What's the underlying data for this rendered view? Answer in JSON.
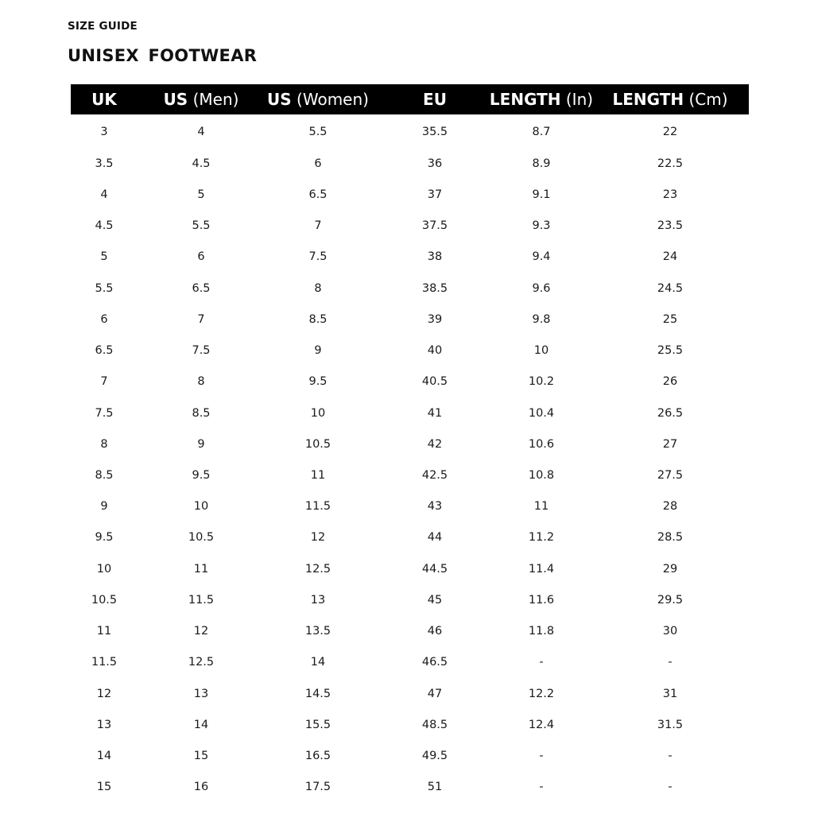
{
  "kicker": "SIZE GUIDE",
  "title": "UNISEX  FOOTWEAR",
  "colors": {
    "header_bg": "#000000",
    "header_text": "#ffffff",
    "text": "#111111"
  },
  "columns": [
    {
      "bold": "UK",
      "light": ""
    },
    {
      "bold": "US",
      "light": " (Men)"
    },
    {
      "bold": "US",
      "light": " (Women)"
    },
    {
      "bold": "EU",
      "light": ""
    },
    {
      "bold": "LENGTH",
      "light": " (In)"
    },
    {
      "bold": "LENGTH",
      "light": " (Cm)"
    }
  ],
  "rows": [
    [
      "3",
      "4",
      "5.5",
      "35.5",
      "8.7",
      "22"
    ],
    [
      "3.5",
      "4.5",
      "6",
      "36",
      "8.9",
      "22.5"
    ],
    [
      "4",
      "5",
      "6.5",
      "37",
      "9.1",
      "23"
    ],
    [
      "4.5",
      "5.5",
      "7",
      "37.5",
      "9.3",
      "23.5"
    ],
    [
      "5",
      "6",
      "7.5",
      "38",
      "9.4",
      "24"
    ],
    [
      "5.5",
      "6.5",
      "8",
      "38.5",
      "9.6",
      "24.5"
    ],
    [
      "6",
      "7",
      "8.5",
      "39",
      "9.8",
      "25"
    ],
    [
      "6.5",
      "7.5",
      "9",
      "40",
      "10",
      "25.5"
    ],
    [
      "7",
      "8",
      "9.5",
      "40.5",
      "10.2",
      "26"
    ],
    [
      "7.5",
      "8.5",
      "10",
      "41",
      "10.4",
      "26.5"
    ],
    [
      "8",
      "9",
      "10.5",
      "42",
      "10.6",
      "27"
    ],
    [
      "8.5",
      "9.5",
      "11",
      "42.5",
      "10.8",
      "27.5"
    ],
    [
      "9",
      "10",
      "11.5",
      "43",
      "11",
      "28"
    ],
    [
      "9.5",
      "10.5",
      "12",
      "44",
      "11.2",
      "28.5"
    ],
    [
      "10",
      "11",
      "12.5",
      "44.5",
      "11.4",
      "29"
    ],
    [
      "10.5",
      "11.5",
      "13",
      "45",
      "11.6",
      "29.5"
    ],
    [
      "11",
      "12",
      "13.5",
      "46",
      "11.8",
      "30"
    ],
    [
      "11.5",
      "12.5",
      "14",
      "46.5",
      "-",
      "-"
    ],
    [
      "12",
      "13",
      "14.5",
      "47",
      "12.2",
      "31"
    ],
    [
      "13",
      "14",
      "15.5",
      "48.5",
      "12.4",
      "31.5"
    ],
    [
      "14",
      "15",
      "16.5",
      "49.5",
      "-",
      "-"
    ],
    [
      "15",
      "16",
      "17.5",
      "51",
      "-",
      "-"
    ]
  ]
}
